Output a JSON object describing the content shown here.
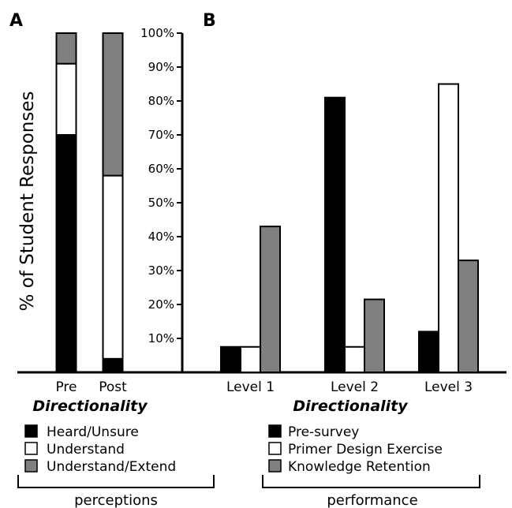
{
  "chart_data": [
    {
      "panel_label": "A",
      "type": "stacked-bar",
      "categories": [
        "Pre",
        "Post"
      ],
      "series": [
        {
          "name": "Heard/Unsure",
          "color": "#000000",
          "values": [
            70,
            4
          ]
        },
        {
          "name": "Understand",
          "color": "#ffffff",
          "values": [
            21,
            54
          ]
        },
        {
          "name": "Understand/Extend",
          "color": "#808080",
          "values": [
            9,
            42
          ]
        }
      ],
      "xlabel": "Directionality",
      "ylabel": "% of Student Responses",
      "ylim": [
        0,
        100
      ],
      "bracket_label": "perceptions"
    },
    {
      "panel_label": "B",
      "type": "bar",
      "categories": [
        "Level 1",
        "Level 2",
        "Level 3"
      ],
      "series": [
        {
          "name": "Pre-survey",
          "color": "#000000",
          "values": [
            7.5,
            81,
            12
          ]
        },
        {
          "name": "Primer Design Exercise",
          "color": "#ffffff",
          "values": [
            7.5,
            7.5,
            85
          ]
        },
        {
          "name": "Knowledge Retention",
          "color": "#808080",
          "values": [
            43,
            21.5,
            33
          ]
        }
      ],
      "y_ticks": [
        "10%",
        "20%",
        "30%",
        "40%",
        "50%",
        "60%",
        "70%",
        "80%",
        "90%",
        "100%"
      ],
      "xlabel": "Directionality",
      "ylim": [
        0,
        100
      ],
      "bracket_label": "performance"
    }
  ]
}
